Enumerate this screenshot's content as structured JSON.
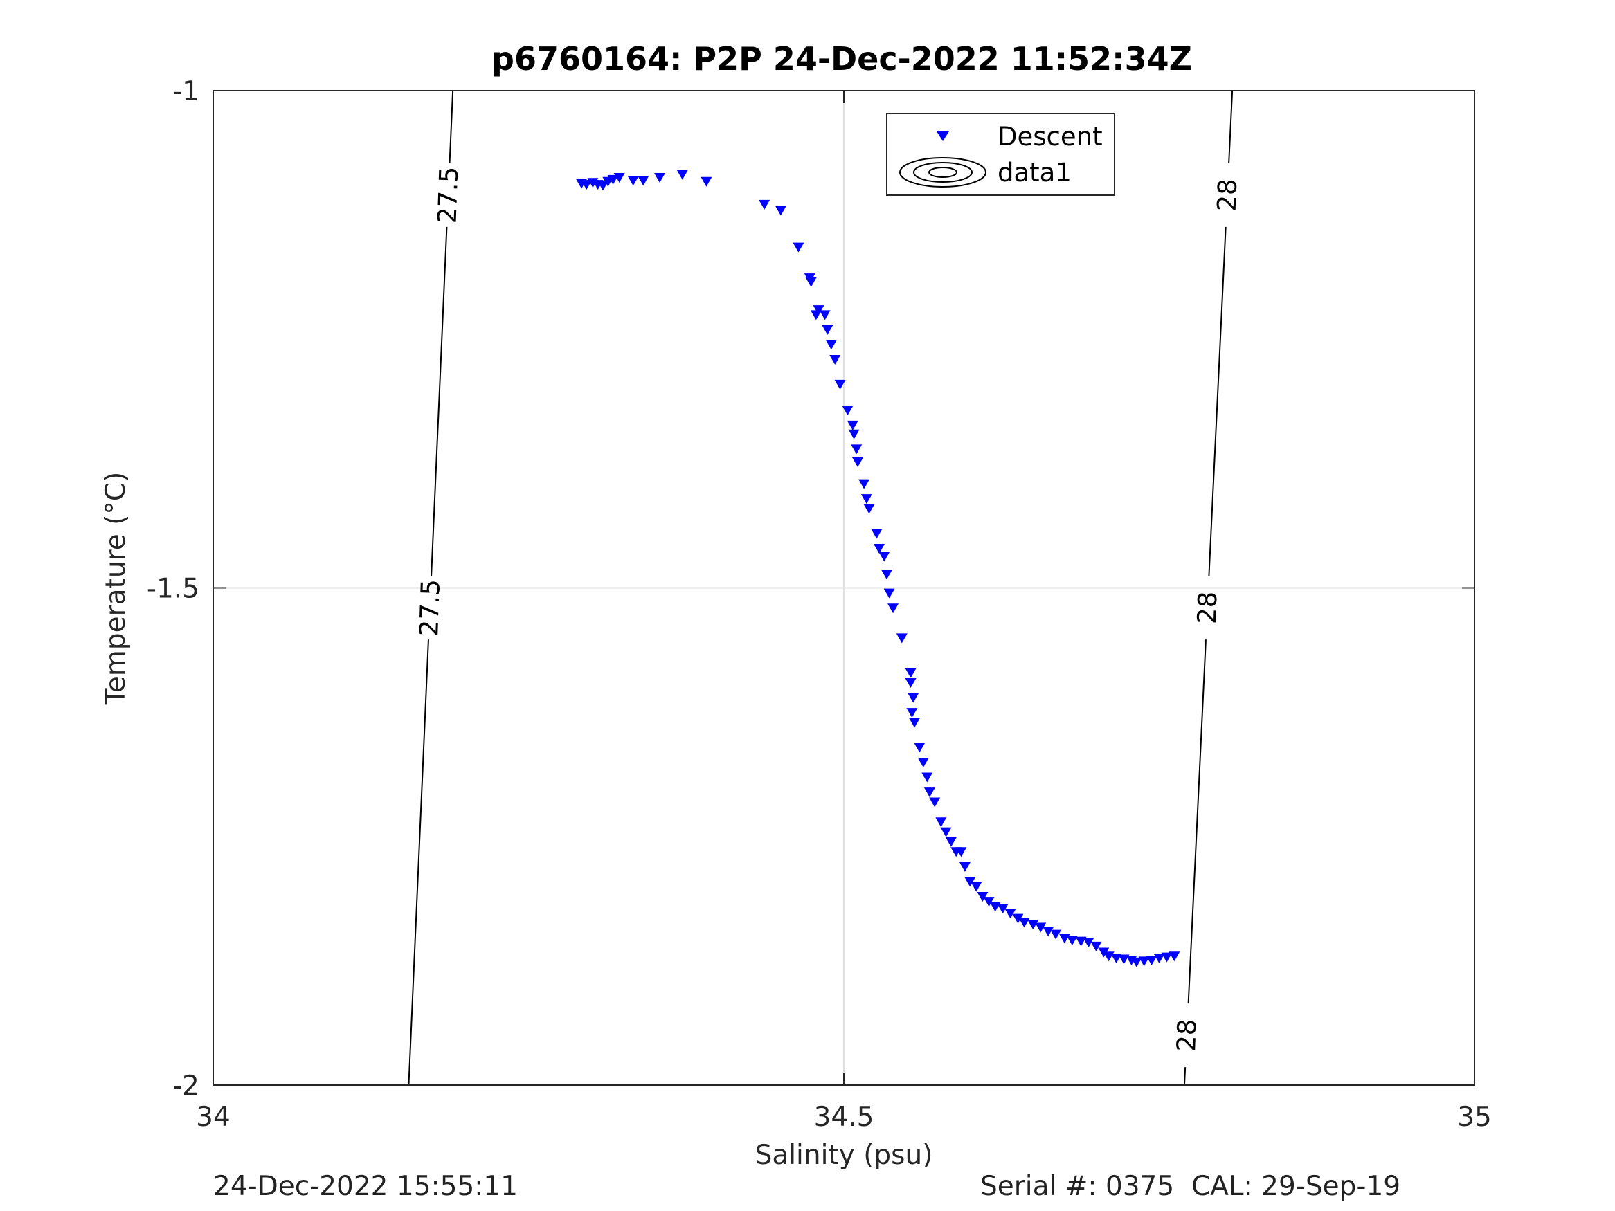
{
  "chart_data": {
    "type": "scatter",
    "title": "p6760164: P2P 24-Dec-2022 11:52:34Z",
    "xlabel": "Salinity (psu)",
    "ylabel": "Temperature (°C)",
    "xlim": [
      34,
      35
    ],
    "ylim": [
      -2,
      -1
    ],
    "x_ticks": [
      34,
      34.5,
      35
    ],
    "x_tick_labels": [
      "34",
      "34.5",
      "35"
    ],
    "y_ticks": [
      -2,
      -1.5,
      -1
    ],
    "y_tick_labels": [
      "-2",
      "-1.5",
      "-1"
    ],
    "grid": true,
    "legend": {
      "placement": "top-center-right",
      "entries": [
        {
          "label": "Descent",
          "marker": "triangle-down",
          "color": "#0000ff"
        },
        {
          "label": "data1",
          "marker": "contour",
          "color": "#000000"
        }
      ]
    },
    "series": [
      {
        "name": "Descent",
        "color": "#0000ff",
        "marker": "triangle-down",
        "points": [
          [
            34.292,
            -1.093
          ],
          [
            34.296,
            -1.094
          ],
          [
            34.301,
            -1.092
          ],
          [
            34.305,
            -1.094
          ],
          [
            34.309,
            -1.095
          ],
          [
            34.313,
            -1.091
          ],
          [
            34.317,
            -1.089
          ],
          [
            34.322,
            -1.087
          ],
          [
            34.333,
            -1.09
          ],
          [
            34.341,
            -1.09
          ],
          [
            34.354,
            -1.087
          ],
          [
            34.372,
            -1.084
          ],
          [
            34.391,
            -1.091
          ],
          [
            34.437,
            -1.114
          ],
          [
            34.45,
            -1.12
          ],
          [
            34.464,
            -1.157
          ],
          [
            34.473,
            -1.188
          ],
          [
            34.474,
            -1.192
          ],
          [
            34.478,
            -1.225
          ],
          [
            34.48,
            -1.22
          ],
          [
            34.485,
            -1.225
          ],
          [
            34.487,
            -1.24
          ],
          [
            34.49,
            -1.255
          ],
          [
            34.493,
            -1.27
          ],
          [
            34.497,
            -1.295
          ],
          [
            34.503,
            -1.321
          ],
          [
            34.507,
            -1.336
          ],
          [
            34.508,
            -1.345
          ],
          [
            34.51,
            -1.36
          ],
          [
            34.511,
            -1.373
          ],
          [
            34.516,
            -1.395
          ],
          [
            34.518,
            -1.41
          ],
          [
            34.52,
            -1.42
          ],
          [
            34.526,
            -1.445
          ],
          [
            34.528,
            -1.46
          ],
          [
            34.532,
            -1.468
          ],
          [
            34.534,
            -1.486
          ],
          [
            34.536,
            -1.505
          ],
          [
            34.539,
            -1.52
          ],
          [
            34.546,
            -1.55
          ],
          [
            34.553,
            -1.585
          ],
          [
            34.553,
            -1.595
          ],
          [
            34.555,
            -1.61
          ],
          [
            34.554,
            -1.625
          ],
          [
            34.556,
            -1.635
          ],
          [
            34.56,
            -1.66
          ],
          [
            34.563,
            -1.675
          ],
          [
            34.566,
            -1.69
          ],
          [
            34.568,
            -1.705
          ],
          [
            34.572,
            -1.715
          ],
          [
            34.577,
            -1.735
          ],
          [
            34.581,
            -1.745
          ],
          [
            34.585,
            -1.755
          ],
          [
            34.589,
            -1.765
          ],
          [
            34.593,
            -1.765
          ],
          [
            34.596,
            -1.78
          ],
          [
            34.6,
            -1.795
          ],
          [
            34.605,
            -1.8
          ],
          [
            34.61,
            -1.81
          ],
          [
            34.615,
            -1.815
          ],
          [
            34.62,
            -1.82
          ],
          [
            34.626,
            -1.822
          ],
          [
            34.632,
            -1.827
          ],
          [
            34.638,
            -1.832
          ],
          [
            34.643,
            -1.836
          ],
          [
            34.65,
            -1.838
          ],
          [
            34.656,
            -1.841
          ],
          [
            34.662,
            -1.845
          ],
          [
            34.668,
            -1.848
          ],
          [
            34.675,
            -1.852
          ],
          [
            34.681,
            -1.854
          ],
          [
            34.688,
            -1.855
          ],
          [
            34.694,
            -1.856
          ],
          [
            34.7,
            -1.86
          ],
          [
            34.706,
            -1.866
          ],
          [
            34.71,
            -1.87
          ],
          [
            34.716,
            -1.872
          ],
          [
            34.722,
            -1.873
          ],
          [
            34.728,
            -1.874
          ],
          [
            34.732,
            -1.876
          ],
          [
            34.738,
            -1.875
          ],
          [
            34.744,
            -1.874
          ],
          [
            34.75,
            -1.872
          ],
          [
            34.756,
            -1.871
          ],
          [
            34.762,
            -1.87
          ]
        ]
      }
    ],
    "contours": [
      {
        "label": "27.5",
        "points": [
          [
            34.19,
            -1.0
          ],
          [
            34.155,
            -2.0
          ]
        ],
        "label_y": [
          -1.105,
          -1.52
        ]
      },
      {
        "label": "28",
        "points": [
          [
            34.808,
            -1.0
          ],
          [
            34.77,
            -2.0
          ]
        ],
        "label_y": [
          -1.105,
          -1.52,
          -1.95
        ]
      }
    ]
  },
  "footer": {
    "left": "24-Dec-2022 15:55:11",
    "right": "Serial #: 0375  CAL: 29-Sep-19"
  }
}
